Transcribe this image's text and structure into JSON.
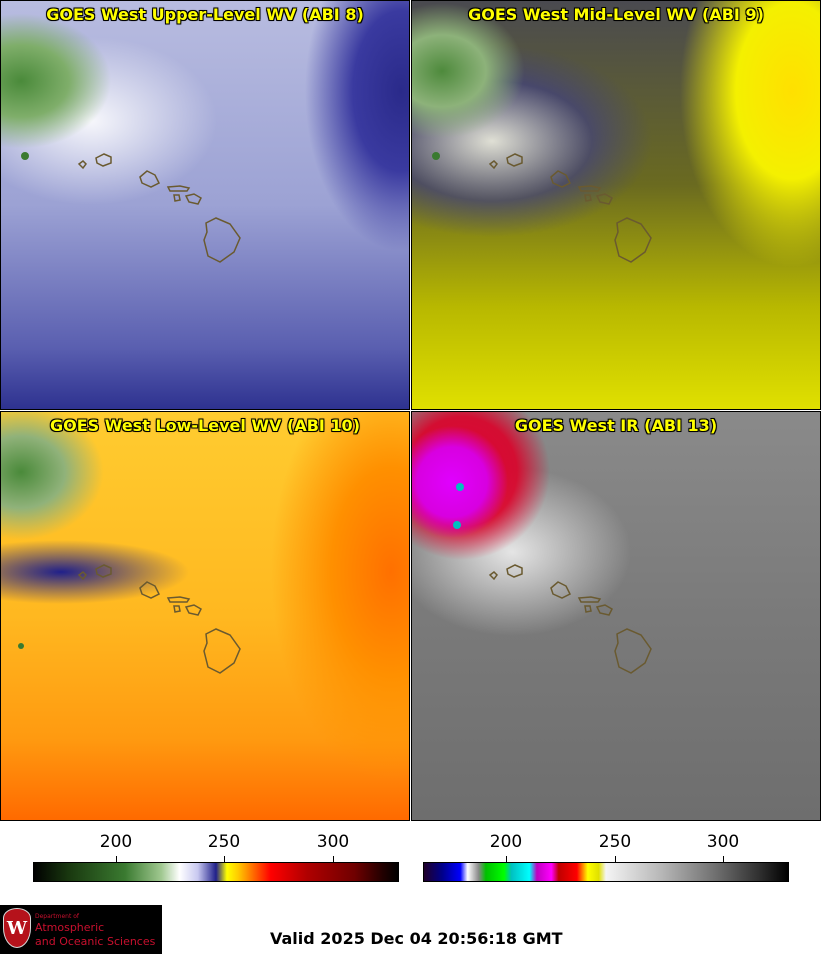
{
  "panels": [
    {
      "title": "GOES West Upper-Level WV (ABI 8)"
    },
    {
      "title": "GOES West Mid-Level WV (ABI 9)"
    },
    {
      "title": "GOES West Low-Level WV (ABI 10)"
    },
    {
      "title": "GOES West IR (ABI 13)"
    }
  ],
  "colorbars": [
    {
      "ticks": [
        "200",
        "250",
        "300"
      ]
    },
    {
      "ticks": [
        "200",
        "250",
        "300"
      ]
    }
  ],
  "footer": {
    "valid": "Valid 2025 Dec 04 20:56:18 GMT",
    "logo": {
      "crest": "W",
      "dept": "Department of",
      "line1": "Atmospheric",
      "line2": "and Oceanic Sciences"
    }
  },
  "colors": {
    "title": "#ffff00",
    "coastline": "#6a5a30",
    "logo_text": "#c8102e"
  }
}
